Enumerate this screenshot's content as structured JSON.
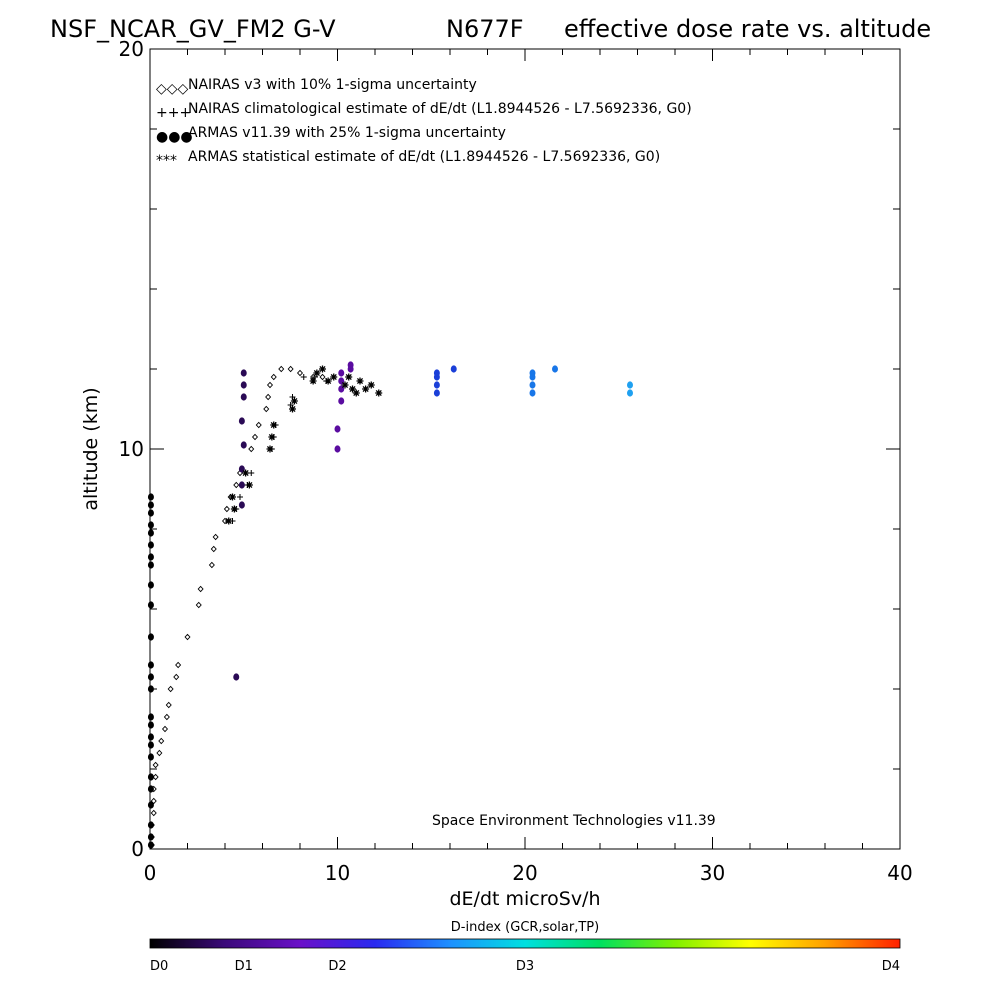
{
  "chart_data": {
    "type": "scatter",
    "title_left": "NSF_NCAR_GV_FM2 G-V",
    "title_mid": "N677F",
    "title_right": "effective dose rate vs. altitude",
    "xlabel": "dE/dt microSv/h",
    "ylabel": "altitude (km)",
    "xlim": [
      0,
      40
    ],
    "ylim": [
      0,
      20
    ],
    "x_tick_labels": [
      "0",
      "10",
      "20",
      "30",
      "40"
    ],
    "y_tick_labels": [
      "0",
      "10",
      "20"
    ],
    "x_ticks": [
      0,
      10,
      20,
      30,
      40
    ],
    "y_ticks": [
      0,
      10,
      20
    ],
    "grid": false,
    "legend": [
      {
        "marker": "◇◇◇",
        "label": "NAIRAS v3 with 10% 1-sigma uncertainty"
      },
      {
        "marker": "+++",
        "label": "NAIRAS climatological estimate of dE/dt (L1.8944526 - L7.5692336, G0)"
      },
      {
        "marker": "●●●",
        "label": "ARMAS v11.39 with 25% 1-sigma uncertainty"
      },
      {
        "marker": "***",
        "label": "ARMAS statistical estimate of dE/dt (L1.8944526 - L7.5692336, G0)"
      }
    ],
    "annotation": "Space Environment Technologies v11.39",
    "series": [
      {
        "name": "NAIRAS v3",
        "marker": "diamond",
        "points": [
          [
            0.1,
            0.1
          ],
          [
            0.1,
            0.3
          ],
          [
            0.1,
            0.6
          ],
          [
            0.2,
            0.9
          ],
          [
            0.2,
            1.2
          ],
          [
            0.2,
            1.5
          ],
          [
            0.3,
            1.8
          ],
          [
            0.3,
            2.1
          ],
          [
            0.5,
            2.4
          ],
          [
            0.6,
            2.7
          ],
          [
            0.8,
            3.0
          ],
          [
            0.9,
            3.3
          ],
          [
            1.0,
            3.6
          ],
          [
            1.1,
            4.0
          ],
          [
            1.4,
            4.3
          ],
          [
            1.5,
            4.6
          ],
          [
            2.0,
            5.3
          ],
          [
            2.6,
            6.1
          ],
          [
            2.7,
            6.5
          ],
          [
            3.3,
            7.1
          ],
          [
            3.4,
            7.5
          ],
          [
            3.5,
            7.8
          ],
          [
            4.0,
            8.2
          ],
          [
            4.1,
            8.5
          ],
          [
            4.3,
            8.8
          ],
          [
            4.6,
            9.1
          ],
          [
            4.8,
            9.4
          ],
          [
            5.4,
            10.0
          ],
          [
            5.6,
            10.3
          ],
          [
            5.8,
            10.6
          ],
          [
            6.2,
            11.0
          ],
          [
            6.3,
            11.3
          ],
          [
            6.4,
            11.6
          ],
          [
            6.6,
            11.8
          ],
          [
            7.0,
            12.0
          ],
          [
            7.5,
            12.0
          ],
          [
            8.0,
            11.9
          ],
          [
            8.7,
            11.8
          ],
          [
            9.2,
            11.8
          ]
        ]
      },
      {
        "name": "NAIRAS climatological",
        "marker": "plus",
        "points": [
          [
            4.4,
            8.2
          ],
          [
            4.6,
            8.5
          ],
          [
            4.8,
            8.8
          ],
          [
            5.2,
            9.1
          ],
          [
            5.4,
            9.4
          ],
          [
            6.5,
            10.0
          ],
          [
            6.6,
            10.3
          ],
          [
            6.7,
            10.6
          ],
          [
            7.5,
            11.1
          ],
          [
            7.6,
            11.3
          ],
          [
            8.2,
            11.8
          ],
          [
            8.8,
            11.8
          ],
          [
            9.4,
            11.7
          ]
        ]
      },
      {
        "name": "ARMAS v11.39",
        "marker": "dot",
        "colors": {
          "D0": "#000000",
          "D0.5": "#2a0a55",
          "D1": "#5a0ca0",
          "D1.8": "#1a3fd8",
          "D2.2": "#1876e8",
          "D2.6": "#1fa0f0"
        },
        "points": [
          [
            0.05,
            0.1,
            "#000000"
          ],
          [
            0.05,
            0.3,
            "#000000"
          ],
          [
            0.05,
            0.6,
            "#000000"
          ],
          [
            0.05,
            1.1,
            "#000000"
          ],
          [
            0.05,
            1.5,
            "#000000"
          ],
          [
            0.05,
            1.8,
            "#000000"
          ],
          [
            0.05,
            2.3,
            "#000000"
          ],
          [
            0.05,
            2.6,
            "#000000"
          ],
          [
            0.05,
            2.8,
            "#000000"
          ],
          [
            0.05,
            3.1,
            "#000000"
          ],
          [
            0.05,
            3.3,
            "#000000"
          ],
          [
            0.05,
            4.0,
            "#000000"
          ],
          [
            0.05,
            4.3,
            "#000000"
          ],
          [
            0.05,
            4.6,
            "#000000"
          ],
          [
            0.05,
            5.3,
            "#000000"
          ],
          [
            0.05,
            6.1,
            "#000000"
          ],
          [
            0.05,
            6.6,
            "#000000"
          ],
          [
            0.05,
            7.1,
            "#000000"
          ],
          [
            0.05,
            7.3,
            "#000000"
          ],
          [
            0.05,
            7.6,
            "#000000"
          ],
          [
            0.05,
            7.9,
            "#000000"
          ],
          [
            0.05,
            8.1,
            "#000000"
          ],
          [
            0.05,
            8.4,
            "#000000"
          ],
          [
            0.05,
            8.6,
            "#000000"
          ],
          [
            0.05,
            8.8,
            "#000000"
          ],
          [
            4.6,
            4.3,
            "#2a0a55"
          ],
          [
            4.9,
            8.6,
            "#2a0a55"
          ],
          [
            4.9,
            9.1,
            "#2a0a55"
          ],
          [
            4.9,
            9.5,
            "#2a0a55"
          ],
          [
            5.0,
            10.1,
            "#2a0a55"
          ],
          [
            4.9,
            10.7,
            "#2a0a55"
          ],
          [
            5.0,
            11.3,
            "#2a0a55"
          ],
          [
            5.0,
            11.6,
            "#2a0a55"
          ],
          [
            5.0,
            11.9,
            "#2a0a55"
          ],
          [
            10.0,
            10.0,
            "#5a0ca0"
          ],
          [
            10.0,
            10.5,
            "#5a0ca0"
          ],
          [
            10.2,
            11.2,
            "#5a0ca0"
          ],
          [
            10.2,
            11.5,
            "#5a0ca0"
          ],
          [
            10.2,
            11.7,
            "#5a0ca0"
          ],
          [
            10.2,
            11.9,
            "#5a0ca0"
          ],
          [
            10.7,
            12.0,
            "#5a0ca0"
          ],
          [
            10.7,
            12.1,
            "#5a0ca0"
          ],
          [
            15.3,
            11.4,
            "#1a3fd8"
          ],
          [
            15.3,
            11.6,
            "#1a3fd8"
          ],
          [
            15.3,
            11.8,
            "#1a3fd8"
          ],
          [
            15.3,
            11.9,
            "#1a3fd8"
          ],
          [
            16.2,
            12.0,
            "#1a3fd8"
          ],
          [
            20.4,
            11.4,
            "#1876e8"
          ],
          [
            20.4,
            11.6,
            "#1876e8"
          ],
          [
            20.4,
            11.8,
            "#1876e8"
          ],
          [
            20.4,
            11.9,
            "#1876e8"
          ],
          [
            21.6,
            12.0,
            "#1876e8"
          ],
          [
            25.6,
            11.4,
            "#1fa0f0"
          ],
          [
            25.6,
            11.6,
            "#1fa0f0"
          ]
        ]
      },
      {
        "name": "ARMAS statistical",
        "marker": "asterisk",
        "points": [
          [
            4.2,
            8.2
          ],
          [
            4.5,
            8.5
          ],
          [
            4.4,
            8.8
          ],
          [
            5.1,
            9.4
          ],
          [
            5.3,
            9.1
          ],
          [
            6.4,
            10.0
          ],
          [
            6.5,
            10.3
          ],
          [
            6.6,
            10.6
          ],
          [
            7.6,
            11.0
          ],
          [
            7.7,
            11.2
          ],
          [
            8.7,
            11.7
          ],
          [
            8.9,
            11.9
          ],
          [
            9.2,
            12.0
          ],
          [
            9.8,
            11.8
          ],
          [
            10.4,
            11.6
          ],
          [
            10.8,
            11.5
          ],
          [
            11.2,
            11.7
          ],
          [
            11.5,
            11.5
          ],
          [
            11.8,
            11.6
          ],
          [
            12.2,
            11.4
          ],
          [
            11.0,
            11.4
          ],
          [
            9.5,
            11.7
          ],
          [
            10.6,
            11.8
          ]
        ]
      }
    ],
    "colorbar": {
      "title": "D-index (GCR,solar,TP)",
      "labels": [
        "D0",
        "D1",
        "D2",
        "D3",
        "D4"
      ],
      "gradient_colors": [
        "#000000",
        "#3b0a7a",
        "#6a10c8",
        "#2a2af0",
        "#1e90ff",
        "#00e0e0",
        "#00e060",
        "#80f000",
        "#ffff00",
        "#ffa000",
        "#ff2000"
      ]
    }
  }
}
